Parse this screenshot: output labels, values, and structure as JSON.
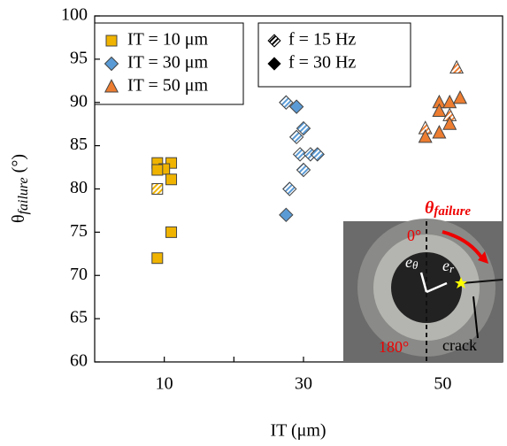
{
  "chart_data": {
    "type": "scatter",
    "xlabel": "IT (μm)",
    "ylabel": {
      "symbol": "θ",
      "sub": "failure",
      "unit": " (°)"
    },
    "xlim": [
      0,
      58.6
    ],
    "ylim": [
      60,
      100
    ],
    "xticks": [
      10,
      30,
      50
    ],
    "x_minor_ticks": [
      20,
      40
    ],
    "yticks": [
      60,
      65,
      70,
      75,
      80,
      85,
      90,
      95,
      100
    ],
    "series": [
      {
        "name": "IT = 10 μm",
        "color": "#f0b400",
        "marker": "square",
        "x": [
          9,
          11,
          10,
          9,
          11,
          9,
          11,
          9
        ],
        "values": [
          83,
          83,
          82.3,
          82.2,
          81.1,
          80,
          75,
          72
        ],
        "hatched": [
          false,
          false,
          false,
          false,
          false,
          true,
          false,
          false
        ]
      },
      {
        "name": "IT = 30 μm",
        "color": "#5b9bd5",
        "marker": "diamond",
        "x": [
          27.5,
          29,
          29,
          30,
          29.5,
          31,
          32,
          30,
          28,
          27.5
        ],
        "values": [
          90,
          89.5,
          86,
          87,
          84,
          84,
          84,
          82.2,
          80,
          77
        ],
        "hatched": [
          true,
          false,
          true,
          true,
          true,
          true,
          true,
          true,
          true,
          false
        ]
      },
      {
        "name": "IT = 50 μm",
        "color": "#ed7d31",
        "marker": "triangle",
        "x": [
          52,
          49.5,
          51,
          52.5,
          49.5,
          51,
          47.5,
          49.5,
          51,
          47.5
        ],
        "values": [
          94,
          90,
          90,
          90.5,
          89,
          88.5,
          87,
          86.5,
          87.5,
          86
        ],
        "hatched": [
          true,
          false,
          false,
          false,
          false,
          true,
          true,
          false,
          false,
          false
        ]
      }
    ],
    "marker_legend": [
      {
        "label": "f = 15 Hz",
        "hatched": true
      },
      {
        "label": "f = 30 Hz",
        "hatched": false
      }
    ],
    "inset": {
      "symbol": "θ",
      "sub": "failure",
      "angle0": "0°",
      "e_theta": "e",
      "e_theta_sub": "θ",
      "e_r": "e",
      "e_r_sub": "r",
      "angle180": "180°",
      "crack": "crack"
    }
  }
}
